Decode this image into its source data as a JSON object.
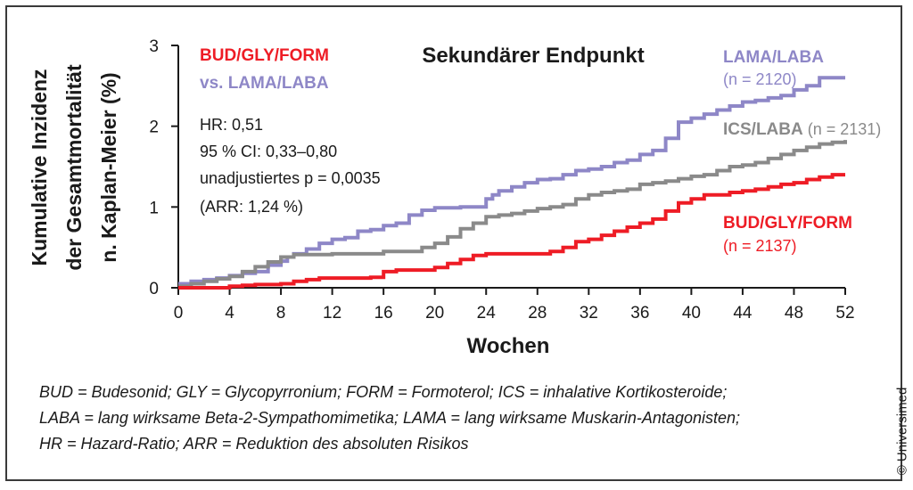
{
  "chart_data": {
    "type": "line",
    "step": true,
    "title": "Sekundärer Endpunkt",
    "xlabel": "Wochen",
    "ylabel_lines": [
      "Kumulative Inzidenz",
      "der Gesamtmortalität",
      "n. Kaplan-Meier (%)"
    ],
    "xlim": [
      0,
      52
    ],
    "ylim": [
      0,
      3
    ],
    "xticks": [
      0,
      4,
      8,
      12,
      16,
      20,
      24,
      28,
      32,
      36,
      40,
      44,
      48,
      52
    ],
    "yticks": [
      0,
      1,
      2,
      3
    ],
    "grid": false,
    "annotation": {
      "comparison_line1": "BUD/GLY/FORM",
      "comparison_line2": "vs. LAMA/LABA",
      "stats": [
        "HR: 0,51",
        "95 % CI: 0,33–0,80",
        "unadjustiertes p = 0,0035",
        "(ARR: 1,24 %)"
      ]
    },
    "series": [
      {
        "name": "LAMA/LABA",
        "n_label": "(n = 2120)",
        "color": "#8e87c7",
        "points": [
          [
            0,
            0.05
          ],
          [
            1,
            0.08
          ],
          [
            2,
            0.1
          ],
          [
            3,
            0.12
          ],
          [
            4,
            0.15
          ],
          [
            5,
            0.18
          ],
          [
            6,
            0.2
          ],
          [
            7,
            0.28
          ],
          [
            8,
            0.33
          ],
          [
            8.5,
            0.38
          ],
          [
            9,
            0.42
          ],
          [
            10,
            0.48
          ],
          [
            11,
            0.55
          ],
          [
            12,
            0.6
          ],
          [
            13,
            0.62
          ],
          [
            14,
            0.7
          ],
          [
            15,
            0.72
          ],
          [
            16,
            0.77
          ],
          [
            17,
            0.8
          ],
          [
            18,
            0.9
          ],
          [
            19,
            0.96
          ],
          [
            20,
            0.99
          ],
          [
            21,
            0.99
          ],
          [
            22,
            1.0
          ],
          [
            23,
            1.0
          ],
          [
            24,
            1.1
          ],
          [
            24.5,
            1.15
          ],
          [
            25,
            1.2
          ],
          [
            26,
            1.25
          ],
          [
            27,
            1.3
          ],
          [
            28,
            1.34
          ],
          [
            29,
            1.35
          ],
          [
            30,
            1.4
          ],
          [
            31,
            1.45
          ],
          [
            32,
            1.47
          ],
          [
            33,
            1.5
          ],
          [
            34,
            1.55
          ],
          [
            35,
            1.58
          ],
          [
            36,
            1.65
          ],
          [
            37,
            1.7
          ],
          [
            38,
            1.85
          ],
          [
            39,
            2.05
          ],
          [
            40,
            2.1
          ],
          [
            41,
            2.15
          ],
          [
            42,
            2.2
          ],
          [
            43,
            2.25
          ],
          [
            44,
            2.3
          ],
          [
            45,
            2.32
          ],
          [
            46,
            2.35
          ],
          [
            47,
            2.38
          ],
          [
            48,
            2.45
          ],
          [
            49,
            2.5
          ],
          [
            50,
            2.6
          ],
          [
            51,
            2.6
          ],
          [
            52,
            2.6
          ]
        ]
      },
      {
        "name": "ICS/LABA",
        "n_label": "(n = 2131)",
        "color": "#8a8a8a",
        "points": [
          [
            0,
            0.02
          ],
          [
            1,
            0.05
          ],
          [
            2,
            0.08
          ],
          [
            3,
            0.11
          ],
          [
            4,
            0.14
          ],
          [
            5,
            0.2
          ],
          [
            6,
            0.26
          ],
          [
            7,
            0.32
          ],
          [
            8,
            0.38
          ],
          [
            9,
            0.41
          ],
          [
            10,
            0.41
          ],
          [
            11,
            0.41
          ],
          [
            12,
            0.42
          ],
          [
            13,
            0.42
          ],
          [
            14,
            0.42
          ],
          [
            15,
            0.42
          ],
          [
            16,
            0.45
          ],
          [
            17,
            0.45
          ],
          [
            18,
            0.45
          ],
          [
            19,
            0.5
          ],
          [
            20,
            0.55
          ],
          [
            21,
            0.63
          ],
          [
            22,
            0.73
          ],
          [
            23,
            0.8
          ],
          [
            24,
            0.88
          ],
          [
            25,
            0.9
          ],
          [
            26,
            0.92
          ],
          [
            27,
            0.95
          ],
          [
            28,
            0.98
          ],
          [
            29,
            1.0
          ],
          [
            30,
            1.03
          ],
          [
            31,
            1.1
          ],
          [
            32,
            1.15
          ],
          [
            33,
            1.18
          ],
          [
            34,
            1.2
          ],
          [
            35,
            1.22
          ],
          [
            36,
            1.28
          ],
          [
            37,
            1.3
          ],
          [
            38,
            1.32
          ],
          [
            39,
            1.35
          ],
          [
            40,
            1.38
          ],
          [
            41,
            1.4
          ],
          [
            42,
            1.45
          ],
          [
            43,
            1.5
          ],
          [
            44,
            1.52
          ],
          [
            45,
            1.55
          ],
          [
            46,
            1.6
          ],
          [
            47,
            1.65
          ],
          [
            48,
            1.7
          ],
          [
            49,
            1.74
          ],
          [
            50,
            1.78
          ],
          [
            51,
            1.8
          ],
          [
            52,
            1.83
          ]
        ]
      },
      {
        "name": "BUD/GLY/FORM",
        "n_label": "(n = 2137)",
        "color": "#ee1c25",
        "points": [
          [
            0,
            0
          ],
          [
            1,
            0
          ],
          [
            2,
            0
          ],
          [
            3,
            0
          ],
          [
            4,
            0.02
          ],
          [
            5,
            0.03
          ],
          [
            6,
            0.04
          ],
          [
            7,
            0.04
          ],
          [
            8,
            0.05
          ],
          [
            9,
            0.08
          ],
          [
            10,
            0.1
          ],
          [
            11,
            0.12
          ],
          [
            12,
            0.12
          ],
          [
            13,
            0.12
          ],
          [
            14,
            0.12
          ],
          [
            15,
            0.13
          ],
          [
            16,
            0.2
          ],
          [
            17,
            0.22
          ],
          [
            18,
            0.22
          ],
          [
            19,
            0.22
          ],
          [
            20,
            0.25
          ],
          [
            21,
            0.3
          ],
          [
            22,
            0.35
          ],
          [
            23,
            0.4
          ],
          [
            24,
            0.42
          ],
          [
            25,
            0.42
          ],
          [
            26,
            0.42
          ],
          [
            27,
            0.42
          ],
          [
            28,
            0.42
          ],
          [
            29,
            0.45
          ],
          [
            30,
            0.5
          ],
          [
            31,
            0.57
          ],
          [
            32,
            0.6
          ],
          [
            33,
            0.65
          ],
          [
            34,
            0.7
          ],
          [
            35,
            0.75
          ],
          [
            36,
            0.8
          ],
          [
            37,
            0.85
          ],
          [
            38,
            0.95
          ],
          [
            39,
            1.05
          ],
          [
            40,
            1.1
          ],
          [
            41,
            1.15
          ],
          [
            42,
            1.15
          ],
          [
            43,
            1.18
          ],
          [
            44,
            1.2
          ],
          [
            45,
            1.22
          ],
          [
            46,
            1.25
          ],
          [
            47,
            1.28
          ],
          [
            48,
            1.3
          ],
          [
            49,
            1.34
          ],
          [
            50,
            1.37
          ],
          [
            51,
            1.4
          ],
          [
            52,
            1.4
          ]
        ]
      }
    ]
  },
  "footnote": [
    "BUD = Budesonid; GLY = Glycopyrronium; FORM = Formoterol; ICS = inhalative Kortikosteroide;",
    "LABA = lang wirksame Beta-2-Sympathomimetika; LAMA = lang wirksame Muskarin-Antagonisten;",
    "HR = Hazard-Ratio; ARR = Reduktion des absoluten Risikos"
  ],
  "copyright": "© Universimed"
}
